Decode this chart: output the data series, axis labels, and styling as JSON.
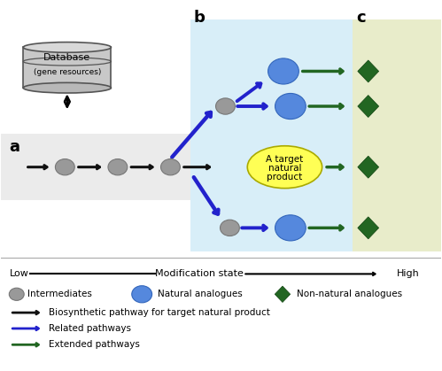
{
  "fig_width": 4.99,
  "fig_height": 4.19,
  "dpi": 100,
  "gray_circle_color": "#999999",
  "blue_circle_color": "#5588dd",
  "green_diamond_color": "#226622",
  "black_arrow_color": "#111111",
  "blue_arrow_color": "#2222cc",
  "green_arrow_color": "#226622",
  "db_box_color": "#c8c8c8",
  "yellow_ellipse_color": "#ffff55",
  "panel_a_color": "#ebebeb",
  "panel_b_color": "#d8eef8",
  "panel_c_color": "#e8ecca",
  "label_a": "a",
  "label_b": "b",
  "label_c": "c"
}
